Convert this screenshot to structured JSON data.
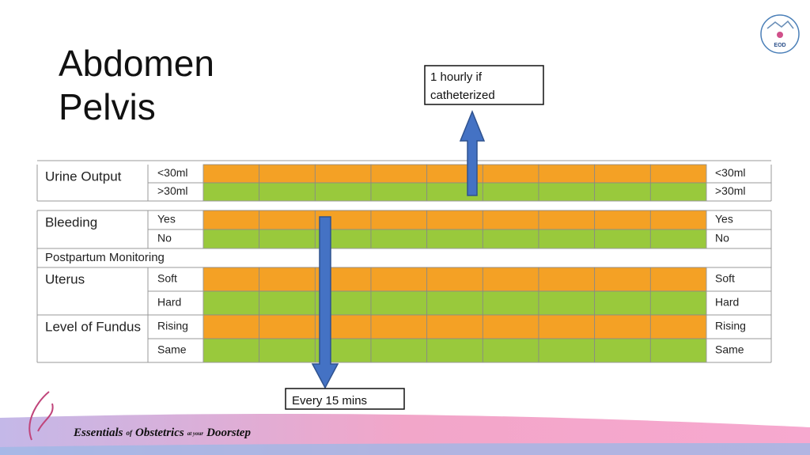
{
  "title": {
    "lines": [
      "Abdomen",
      "Pelvis"
    ]
  },
  "callouts": {
    "top": [
      "1 hourly if",
      "catheterized"
    ],
    "bottom": "Every 15 mins"
  },
  "table": {
    "sections": [
      {
        "label": "Urine Output",
        "options": [
          "<30ml",
          ">30ml"
        ]
      },
      {
        "label": "Bleeding",
        "options": [
          "Yes",
          "No"
        ]
      },
      {
        "heading": "Postpartum Monitoring"
      },
      {
        "label": "Uterus",
        "options": [
          "Soft",
          "Hard"
        ]
      },
      {
        "label": "Level of Fundus",
        "options": [
          "Rising",
          "Same"
        ]
      }
    ]
  },
  "footer": {
    "brand": [
      "Essentials",
      "of",
      "Obstetrics",
      "at your",
      "Doorstep"
    ]
  },
  "logo": {
    "text": "EOD"
  }
}
